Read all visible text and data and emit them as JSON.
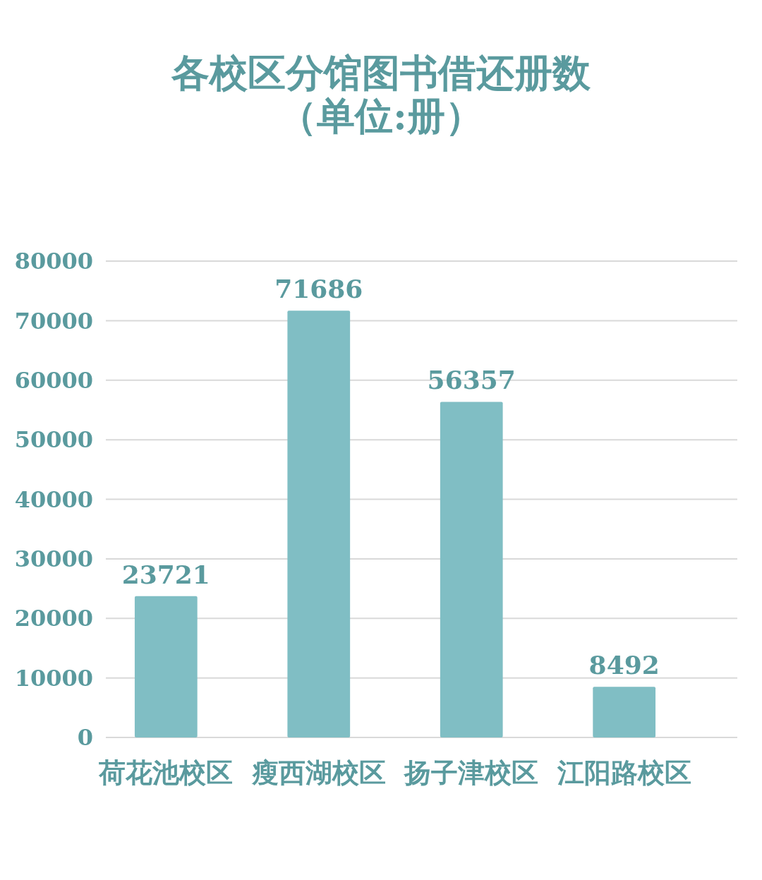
{
  "chart_data": {
    "type": "bar",
    "title": "各校区分馆图书借还册数",
    "subtitle": "（单位:册）",
    "categories": [
      "荷花池校区",
      "瘦西湖校区",
      "扬子津校区",
      "江阳路校区"
    ],
    "values": [
      23721,
      71686,
      56357,
      8492
    ],
    "color": "#80bec4",
    "ylim": [
      0,
      80000
    ],
    "yticks": [
      0,
      10000,
      20000,
      30000,
      40000,
      50000,
      60000,
      70000,
      80000
    ],
    "grid": true,
    "data_labels": true
  }
}
